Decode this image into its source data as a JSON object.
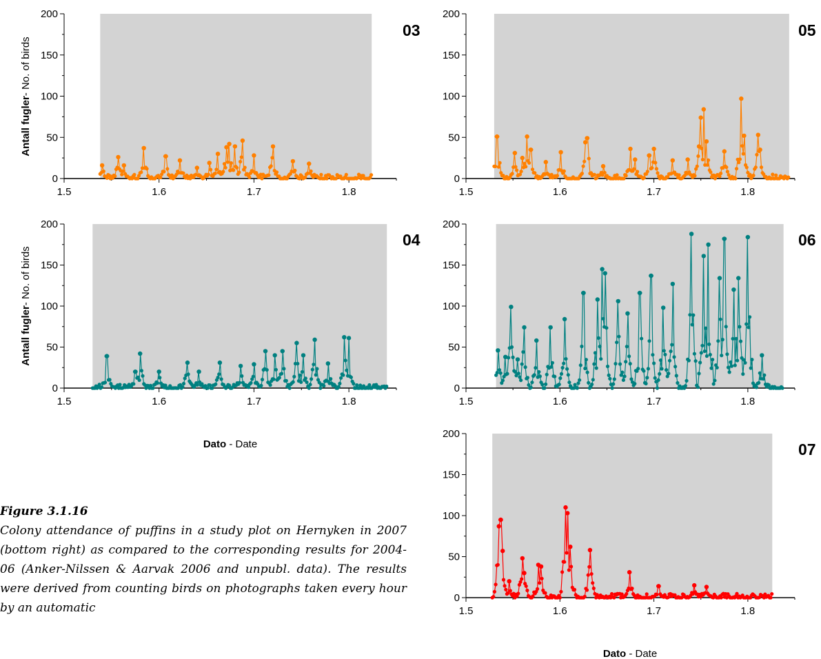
{
  "figure": {
    "caption_title": "Figure 3.1.16",
    "caption_text": "Colony attendance of puffins in a study plot on Hernyken in 2007 (bottom right) as compared to the corresponding results for 2004-06 (Anker-Nilssen & Aarvak 2006 and unpubl. data). The results were derived from counting birds on photographs taken every hour by an automatic",
    "ylabel_bold": "Antall fugler",
    "ylabel_rest": "- No. of birds",
    "xlabel_bold": "Dato",
    "xlabel_rest": " - Date"
  },
  "chart_data": [
    {
      "type": "line",
      "panel_label": "03",
      "color": "#ff8000",
      "background": "#d3d3d3",
      "xlim": [
        1.5,
        1.85
      ],
      "ylim": [
        0,
        200
      ],
      "xticks": [
        "1.5",
        "1.6",
        "1.7",
        "1.8"
      ],
      "yticks": [
        "0",
        "50",
        "100",
        "150",
        "200"
      ],
      "grid": false,
      "x_range": [
        1.538,
        1.824
      ],
      "peaks": [
        [
          1.54,
          16
        ],
        [
          1.557,
          26
        ],
        [
          1.563,
          16
        ],
        [
          1.584,
          37
        ],
        [
          1.607,
          27
        ],
        [
          1.622,
          22
        ],
        [
          1.64,
          13
        ],
        [
          1.653,
          19
        ],
        [
          1.662,
          30
        ],
        [
          1.671,
          38
        ],
        [
          1.674,
          42
        ],
        [
          1.68,
          39
        ],
        [
          1.688,
          46
        ],
        [
          1.7,
          28
        ],
        [
          1.72,
          39
        ],
        [
          1.741,
          21
        ],
        [
          1.758,
          18
        ]
      ]
    },
    {
      "type": "line",
      "panel_label": "05",
      "color": "#ff8000",
      "background": "#d3d3d3",
      "xlim": [
        1.5,
        1.85
      ],
      "ylim": [
        0,
        200
      ],
      "xticks": [
        "1.5",
        "1.6",
        "1.7",
        "1.8"
      ],
      "yticks": [
        "0",
        "50",
        "100",
        "150",
        "200"
      ],
      "grid": false,
      "x_range": [
        1.53,
        1.844
      ],
      "peaks": [
        [
          1.533,
          51
        ],
        [
          1.552,
          31
        ],
        [
          1.56,
          25
        ],
        [
          1.565,
          51
        ],
        [
          1.569,
          35
        ],
        [
          1.585,
          20
        ],
        [
          1.601,
          32
        ],
        [
          1.627,
          44
        ],
        [
          1.629,
          49
        ],
        [
          1.646,
          15
        ],
        [
          1.675,
          36
        ],
        [
          1.68,
          23
        ],
        [
          1.695,
          28
        ],
        [
          1.7,
          36
        ],
        [
          1.72,
          22
        ],
        [
          1.736,
          23
        ],
        [
          1.748,
          39
        ],
        [
          1.75,
          74
        ],
        [
          1.753,
          84
        ],
        [
          1.756,
          45
        ],
        [
          1.775,
          33
        ],
        [
          1.793,
          97
        ],
        [
          1.796,
          52
        ],
        [
          1.811,
          53
        ],
        [
          1.813,
          35
        ]
      ]
    },
    {
      "type": "line",
      "panel_label": "04",
      "color": "#008080",
      "background": "#d3d3d3",
      "xlim": [
        1.5,
        1.85
      ],
      "ylim": [
        0,
        200
      ],
      "xticks": [
        "1.5",
        "1.6",
        "1.7",
        "1.8"
      ],
      "yticks": [
        "0",
        "50",
        "100",
        "150",
        "200"
      ],
      "grid": false,
      "x_range": [
        1.53,
        1.84
      ],
      "peaks": [
        [
          1.545,
          39
        ],
        [
          1.58,
          42
        ],
        [
          1.575,
          20
        ],
        [
          1.6,
          20
        ],
        [
          1.63,
          31
        ],
        [
          1.642,
          20
        ],
        [
          1.664,
          31
        ],
        [
          1.686,
          27
        ],
        [
          1.7,
          29
        ],
        [
          1.712,
          45
        ],
        [
          1.722,
          40
        ],
        [
          1.73,
          45
        ],
        [
          1.745,
          55
        ],
        [
          1.752,
          40
        ],
        [
          1.764,
          59
        ],
        [
          1.778,
          30
        ],
        [
          1.795,
          62
        ],
        [
          1.8,
          61
        ]
      ]
    },
    {
      "type": "line",
      "panel_label": "06",
      "color": "#008080",
      "background": "#d3d3d3",
      "xlim": [
        1.5,
        1.85
      ],
      "ylim": [
        0,
        200
      ],
      "xticks": [
        "1.5",
        "1.6",
        "1.7",
        "1.8"
      ],
      "yticks": [
        "0",
        "50",
        "100",
        "150",
        "200"
      ],
      "grid": false,
      "x_range": [
        1.532,
        1.838
      ],
      "peaks": [
        [
          1.534,
          46
        ],
        [
          1.542,
          38
        ],
        [
          1.548,
          99
        ],
        [
          1.555,
          35
        ],
        [
          1.562,
          74
        ],
        [
          1.575,
          58
        ],
        [
          1.59,
          74
        ],
        [
          1.605,
          84
        ],
        [
          1.625,
          116
        ],
        [
          1.64,
          108
        ],
        [
          1.645,
          145
        ],
        [
          1.648,
          140
        ],
        [
          1.662,
          106
        ],
        [
          1.672,
          91
        ],
        [
          1.685,
          116
        ],
        [
          1.697,
          137
        ],
        [
          1.71,
          98
        ],
        [
          1.72,
          127
        ],
        [
          1.74,
          188
        ],
        [
          1.753,
          161
        ],
        [
          1.758,
          175
        ],
        [
          1.77,
          134
        ],
        [
          1.775,
          182
        ],
        [
          1.785,
          120
        ],
        [
          1.79,
          134
        ],
        [
          1.8,
          184
        ],
        [
          1.815,
          40
        ]
      ]
    },
    {
      "type": "line",
      "panel_label": "07",
      "color": "#ff0000",
      "background": "#d3d3d3",
      "xlim": [
        1.5,
        1.85
      ],
      "ylim": [
        0,
        200
      ],
      "xticks": [
        "1.5",
        "1.6",
        "1.7",
        "1.8"
      ],
      "yticks": [
        "0",
        "50",
        "100",
        "150",
        "200"
      ],
      "grid": false,
      "x_range": [
        1.528,
        1.826
      ],
      "peaks": [
        [
          1.535,
          87
        ],
        [
          1.537,
          95
        ],
        [
          1.539,
          57
        ],
        [
          1.546,
          20
        ],
        [
          1.56,
          48
        ],
        [
          1.562,
          30
        ],
        [
          1.577,
          40
        ],
        [
          1.58,
          38
        ],
        [
          1.606,
          110
        ],
        [
          1.608,
          103
        ],
        [
          1.611,
          62
        ],
        [
          1.632,
          58
        ],
        [
          1.674,
          31
        ],
        [
          1.705,
          14
        ],
        [
          1.743,
          15
        ],
        [
          1.756,
          13
        ]
      ]
    }
  ]
}
